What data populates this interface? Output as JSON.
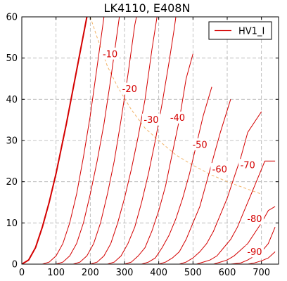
{
  "chart_data": {
    "type": "line",
    "title": "LK4110, E408N",
    "xlabel": "",
    "ylabel": "",
    "xlim": [
      0,
      750
    ],
    "ylim": [
      0,
      60
    ],
    "xticks": [
      0,
      100,
      200,
      300,
      400,
      500,
      600,
      700
    ],
    "yticks": [
      0,
      10,
      20,
      30,
      40,
      50,
      60
    ],
    "grid": true,
    "legend": {
      "position": "top-right",
      "entries": [
        {
          "label": "HV1_I",
          "color": "#d40000"
        }
      ]
    },
    "colors": {
      "curves": "#d40000",
      "grid": "#b0b0b0",
      "power_limit": "#f2b46a"
    },
    "series": [
      {
        "label_on_chart": "",
        "points": [
          [
            0,
            0
          ],
          [
            20,
            1
          ],
          [
            40,
            4
          ],
          [
            60,
            9
          ],
          [
            80,
            15
          ],
          [
            100,
            22
          ],
          [
            130,
            34
          ],
          [
            160,
            47
          ],
          [
            190,
            60
          ]
        ]
      },
      {
        "label_on_chart": "-10",
        "points": [
          [
            60,
            0
          ],
          [
            80,
            0.5
          ],
          [
            100,
            2
          ],
          [
            120,
            5
          ],
          [
            140,
            10
          ],
          [
            160,
            17
          ],
          [
            180,
            26
          ],
          [
            200,
            36
          ],
          [
            220,
            48
          ],
          [
            240,
            60
          ]
        ]
      },
      {
        "label_on_chart": "-20",
        "points": [
          [
            100,
            0
          ],
          [
            120,
            0.5
          ],
          [
            140,
            2
          ],
          [
            160,
            5
          ],
          [
            180,
            10
          ],
          [
            200,
            17
          ],
          [
            220,
            25
          ],
          [
            240,
            34
          ],
          [
            260,
            45
          ],
          [
            285,
            60
          ]
        ]
      },
      {
        "label_on_chart": "-30",
        "points": [
          [
            150,
            0
          ],
          [
            170,
            0.5
          ],
          [
            190,
            2
          ],
          [
            210,
            5
          ],
          [
            230,
            10
          ],
          [
            250,
            17
          ],
          [
            270,
            25
          ],
          [
            290,
            35
          ],
          [
            310,
            46
          ],
          [
            330,
            58
          ],
          [
            335,
            60
          ]
        ]
      },
      {
        "label_on_chart": "-40",
        "points": [
          [
            200,
            0
          ],
          [
            220,
            0.5
          ],
          [
            240,
            2
          ],
          [
            260,
            5
          ],
          [
            280,
            10
          ],
          [
            300,
            16
          ],
          [
            320,
            23
          ],
          [
            340,
            31
          ],
          [
            360,
            40
          ],
          [
            380,
            52
          ],
          [
            395,
            60
          ]
        ]
      },
      {
        "label_on_chart": "",
        "points": [
          [
            250,
            0
          ],
          [
            270,
            0.5
          ],
          [
            290,
            2
          ],
          [
            310,
            5
          ],
          [
            330,
            9
          ],
          [
            350,
            15
          ],
          [
            370,
            22
          ],
          [
            390,
            30
          ],
          [
            410,
            39
          ],
          [
            430,
            49
          ],
          [
            445,
            57
          ],
          [
            450,
            60
          ]
        ]
      },
      {
        "label_on_chart": "-50",
        "points": [
          [
            300,
            0
          ],
          [
            320,
            0.5
          ],
          [
            340,
            2
          ],
          [
            360,
            4
          ],
          [
            380,
            8
          ],
          [
            400,
            13
          ],
          [
            420,
            19
          ],
          [
            440,
            27
          ],
          [
            460,
            35
          ],
          [
            480,
            45
          ],
          [
            500,
            51
          ]
        ]
      },
      {
        "label_on_chart": "",
        "points": [
          [
            350,
            0
          ],
          [
            370,
            0.5
          ],
          [
            390,
            1.5
          ],
          [
            410,
            4
          ],
          [
            430,
            7
          ],
          [
            450,
            11
          ],
          [
            470,
            16
          ],
          [
            490,
            22
          ],
          [
            510,
            29
          ],
          [
            530,
            36
          ],
          [
            555,
            43
          ]
        ]
      },
      {
        "label_on_chart": "-60",
        "points": [
          [
            400,
            0
          ],
          [
            420,
            0.5
          ],
          [
            440,
            1.5
          ],
          [
            460,
            3
          ],
          [
            480,
            6
          ],
          [
            500,
            10
          ],
          [
            520,
            14
          ],
          [
            540,
            20
          ],
          [
            560,
            26
          ],
          [
            580,
            32
          ],
          [
            610,
            40
          ]
        ]
      },
      {
        "label_on_chart": "-70",
        "points": [
          [
            460,
            0
          ],
          [
            480,
            0.5
          ],
          [
            500,
            1.5
          ],
          [
            520,
            3
          ],
          [
            540,
            5
          ],
          [
            560,
            8
          ],
          [
            580,
            12
          ],
          [
            600,
            16
          ],
          [
            620,
            21
          ],
          [
            640,
            26
          ],
          [
            660,
            32
          ],
          [
            700,
            37
          ]
        ]
      },
      {
        "label_on_chart": "",
        "points": [
          [
            510,
            0
          ],
          [
            530,
            0.5
          ],
          [
            550,
            1
          ],
          [
            570,
            2
          ],
          [
            590,
            4
          ],
          [
            610,
            6
          ],
          [
            630,
            9
          ],
          [
            650,
            13
          ],
          [
            670,
            17
          ],
          [
            690,
            21
          ],
          [
            710,
            25
          ],
          [
            740,
            25
          ]
        ]
      },
      {
        "label_on_chart": "-80",
        "points": [
          [
            560,
            0
          ],
          [
            580,
            0.5
          ],
          [
            600,
            1
          ],
          [
            620,
            2
          ],
          [
            640,
            3.5
          ],
          [
            660,
            5
          ],
          [
            680,
            7.5
          ],
          [
            700,
            10
          ],
          [
            720,
            13
          ],
          [
            740,
            14
          ]
        ]
      },
      {
        "label_on_chart": "",
        "points": [
          [
            610,
            0
          ],
          [
            640,
            0.3
          ],
          [
            660,
            1
          ],
          [
            680,
            2
          ],
          [
            700,
            3
          ],
          [
            720,
            5
          ],
          [
            740,
            9
          ]
        ]
      },
      {
        "label_on_chart": "-90",
        "points": [
          [
            660,
            0
          ],
          [
            680,
            0.3
          ],
          [
            700,
            0.8
          ],
          [
            720,
            1.5
          ],
          [
            740,
            3
          ]
        ]
      }
    ],
    "power_limit_curve": {
      "style": "dashed",
      "points": [
        [
          200,
          60
        ],
        [
          220,
          55
        ],
        [
          250,
          48
        ],
        [
          280,
          43
        ],
        [
          320,
          37.5
        ],
        [
          360,
          33
        ],
        [
          400,
          30
        ],
        [
          450,
          26.5
        ],
        [
          500,
          24
        ],
        [
          550,
          21.8
        ],
        [
          600,
          20
        ],
        [
          650,
          18.5
        ],
        [
          700,
          17
        ]
      ]
    },
    "curve_labels": [
      {
        "text": "-10",
        "x": 258,
        "y": 51
      },
      {
        "text": "-20",
        "x": 315,
        "y": 42.5
      },
      {
        "text": "-30",
        "x": 378,
        "y": 35
      },
      {
        "text": "-40",
        "x": 455,
        "y": 35.5
      },
      {
        "text": "-50",
        "x": 520,
        "y": 29
      },
      {
        "text": "-60",
        "x": 578,
        "y": 23
      },
      {
        "text": "-70",
        "x": 660,
        "y": 24
      },
      {
        "text": "-80",
        "x": 680,
        "y": 11
      },
      {
        "text": "-90",
        "x": 680,
        "y": 3
      }
    ]
  }
}
